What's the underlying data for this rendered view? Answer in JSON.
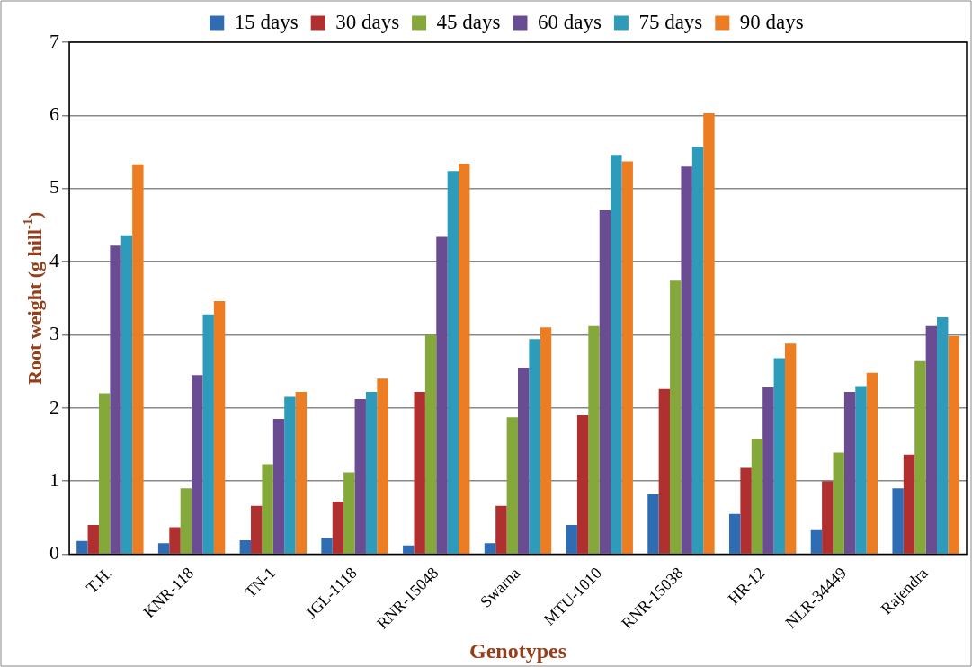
{
  "chart_data": {
    "type": "bar",
    "xlabel": "Genotypes",
    "ylabel": "Root weight (g hill$^{-1}$)",
    "categories": [
      "T.H.",
      "KNR-118",
      "TN-1",
      "JGL-1118",
      "RNR-15048",
      "Swarna",
      "MTU-1010",
      "RNR-15038",
      "HR-12",
      "NLR-34449",
      "Rajendra"
    ],
    "series": [
      {
        "name": "15 days",
        "color": "#2e6db4",
        "values": [
          0.18,
          0.15,
          0.19,
          0.22,
          0.12,
          0.15,
          0.4,
          0.82,
          0.55,
          0.33,
          0.9
        ]
      },
      {
        "name": "30 days",
        "color": "#b03030",
        "values": [
          0.4,
          0.37,
          0.66,
          0.72,
          2.22,
          0.66,
          1.9,
          2.26,
          1.18,
          1.0,
          1.36
        ]
      },
      {
        "name": "45 days",
        "color": "#84a83a",
        "values": [
          2.2,
          0.9,
          1.23,
          1.12,
          3.0,
          1.87,
          3.12,
          3.74,
          1.58,
          1.39,
          2.64
        ]
      },
      {
        "name": "60 days",
        "color": "#6a4c93",
        "values": [
          4.22,
          2.45,
          1.85,
          2.12,
          4.34,
          2.55,
          4.7,
          5.3,
          2.28,
          2.22,
          3.12
        ]
      },
      {
        "name": "75 days",
        "color": "#2e9bbb",
        "values": [
          4.36,
          3.28,
          2.15,
          2.22,
          5.24,
          2.94,
          5.46,
          5.57,
          2.68,
          2.3,
          3.24
        ]
      },
      {
        "name": "90 days",
        "color": "#ed7d22",
        "values": [
          5.33,
          3.46,
          2.22,
          2.4,
          5.34,
          3.1,
          5.37,
          6.03,
          2.88,
          2.48,
          2.98
        ]
      }
    ],
    "ylim": [
      0,
      7
    ],
    "yticks": [
      0,
      1,
      2,
      3,
      4,
      5,
      6,
      7
    ],
    "grid": "y",
    "legend": "top"
  }
}
